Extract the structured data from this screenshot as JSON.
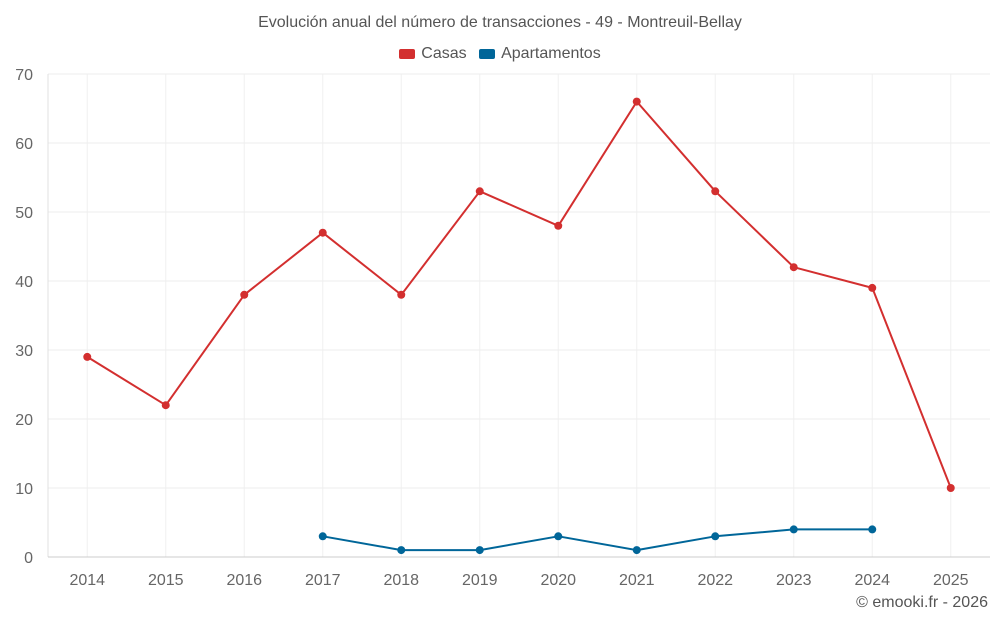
{
  "chart_data": {
    "type": "line",
    "title": "Evolución anual del número de transacciones - 49 - Montreuil-Bellay",
    "x": [
      "2014",
      "2015",
      "2016",
      "2017",
      "2018",
      "2019",
      "2020",
      "2021",
      "2022",
      "2023",
      "2024",
      "2025"
    ],
    "ylim": [
      0,
      70
    ],
    "yticks": [
      0,
      10,
      20,
      30,
      40,
      50,
      60,
      70
    ],
    "grid": true,
    "legend_position": "top-center",
    "series": [
      {
        "name": "Casas",
        "color": "#d32f2f",
        "values": [
          29,
          22,
          38,
          47,
          38,
          53,
          48,
          66,
          53,
          42,
          39,
          10
        ]
      },
      {
        "name": "Apartamentos",
        "color": "#006699",
        "values": [
          null,
          null,
          null,
          3,
          1,
          1,
          3,
          1,
          3,
          4,
          4,
          null
        ]
      }
    ]
  },
  "credit": "© emooki.fr - 2026"
}
